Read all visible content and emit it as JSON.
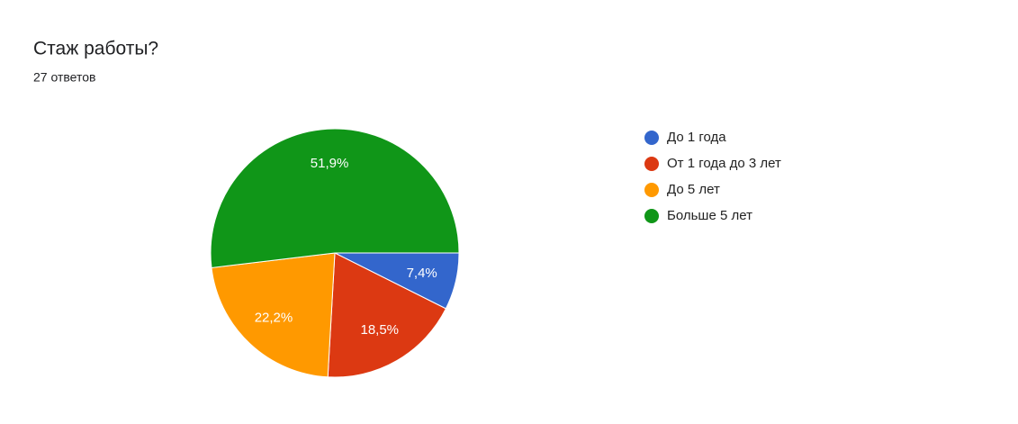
{
  "chart_data": {
    "type": "pie",
    "title": "Стаж работы?",
    "subtitle": "27 ответов",
    "categories": [
      "До 1 года",
      "От 1 года до 3 лет",
      "До 5 лет",
      "Больше 5 лет"
    ],
    "values": [
      7.4,
      18.5,
      22.2,
      51.9
    ],
    "value_labels": [
      "7,4%",
      "18,5%",
      "22,2%",
      "51,9%"
    ],
    "colors": [
      "#3366cc",
      "#dc3912",
      "#ff9900",
      "#109618"
    ],
    "legend": "right"
  }
}
